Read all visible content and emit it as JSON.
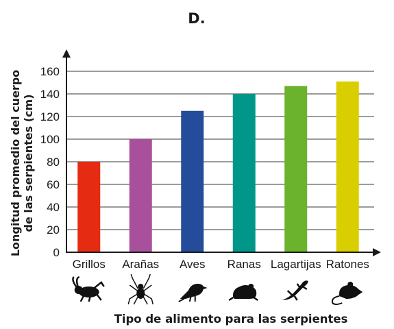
{
  "chart_data": {
    "type": "bar",
    "title": "D.",
    "ylabel": [
      "Longitud promedio del cuerpo",
      "de las serpientes (cm)"
    ],
    "xlabel": "Tipo de alimento para las serpientes",
    "categories": [
      "Grillos",
      "Arañas",
      "Aves",
      "Ranas",
      "Lagartijas",
      "Ratones"
    ],
    "values": [
      80,
      100,
      125,
      140,
      147,
      151
    ],
    "colors": [
      "#e52b12",
      "#a8509c",
      "#244c9b",
      "#00978a",
      "#6bb22d",
      "#d9cf00"
    ],
    "icons": [
      "cricket-icon",
      "spider-icon",
      "bird-icon",
      "frog-icon",
      "lizard-icon",
      "mouse-icon"
    ],
    "ylim": [
      0,
      160
    ],
    "yticks": [
      0,
      20,
      40,
      60,
      80,
      100,
      120,
      140,
      160
    ],
    "grid": true
  }
}
